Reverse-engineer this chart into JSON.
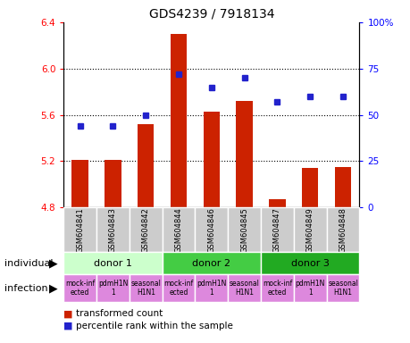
{
  "title": "GDS4239 / 7918134",
  "samples": [
    "GSM604841",
    "GSM604843",
    "GSM604842",
    "GSM604844",
    "GSM604846",
    "GSM604845",
    "GSM604847",
    "GSM604849",
    "GSM604848"
  ],
  "bar_values": [
    5.21,
    5.21,
    5.52,
    6.3,
    5.63,
    5.72,
    4.87,
    5.14,
    5.15
  ],
  "dot_values": [
    44,
    44,
    50,
    72,
    65,
    70,
    57,
    60,
    60
  ],
  "bar_color": "#cc2200",
  "dot_color": "#2222cc",
  "ylim_left": [
    4.8,
    6.4
  ],
  "ylim_right": [
    0,
    100
  ],
  "yticks_left": [
    4.8,
    5.2,
    5.6,
    6.0,
    6.4
  ],
  "yticks_right": [
    0,
    25,
    50,
    75,
    100
  ],
  "ytick_labels_right": [
    "0",
    "25",
    "50",
    "75",
    "100%"
  ],
  "grid_values": [
    5.2,
    5.6,
    6.0
  ],
  "donors": [
    {
      "label": "donor 1",
      "start": 0,
      "end": 3,
      "color": "#ccffcc"
    },
    {
      "label": "donor 2",
      "start": 3,
      "end": 6,
      "color": "#44cc44"
    },
    {
      "label": "donor 3",
      "start": 6,
      "end": 9,
      "color": "#22aa22"
    }
  ],
  "infection_labels_line1": [
    "mock-inf",
    "pdmH1N",
    "seasonal",
    "mock-inf",
    "pdmH1N",
    "seasonal",
    "mock-inf",
    "pdmH1N",
    "seasonal"
  ],
  "infection_labels_line2": [
    "ected",
    "1",
    "H1N1",
    "ected",
    "1",
    "H1N1",
    "ected",
    "1",
    "H1N1"
  ],
  "infection_color": "#dd88dd",
  "gsm_bg_color": "#cccccc",
  "legend_bar_label": "transformed count",
  "legend_dot_label": "percentile rank within the sample",
  "individual_label": "individual",
  "infection_label": "infection",
  "bar_base": 4.8,
  "bar_width": 0.5
}
